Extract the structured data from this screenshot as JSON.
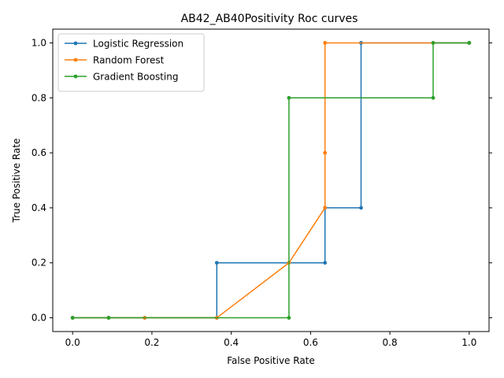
{
  "chart_data": {
    "type": "line",
    "title": "AB42_AB40Positivity Roc curves",
    "xlabel": "False Positive Rate",
    "ylabel": "True Positive Rate",
    "xlim": [
      -0.05,
      1.05
    ],
    "ylim": [
      -0.05,
      1.05
    ],
    "xticks": [
      0.0,
      0.2,
      0.4,
      0.6,
      0.8,
      1.0
    ],
    "yticks": [
      0.0,
      0.2,
      0.4,
      0.6,
      0.8,
      1.0
    ],
    "xtick_labels": [
      "0.0",
      "0.2",
      "0.4",
      "0.6",
      "0.8",
      "1.0"
    ],
    "ytick_labels": [
      "0.0",
      "0.2",
      "0.4",
      "0.6",
      "0.8",
      "1.0"
    ],
    "grid": false,
    "legend_position": "top-left",
    "series": [
      {
        "name": "Logistic Regression",
        "color": "#1f77b4",
        "x": [
          0.0,
          0.0909,
          0.1818,
          0.3636,
          0.3636,
          0.6364,
          0.6364,
          0.7273,
          0.7273,
          1.0
        ],
        "y": [
          0.0,
          0.0,
          0.0,
          0.0,
          0.2,
          0.2,
          0.4,
          0.4,
          1.0,
          1.0
        ]
      },
      {
        "name": "Random Forest",
        "color": "#ff7f0e",
        "x": [
          0.0,
          0.0909,
          0.1818,
          0.3636,
          0.5455,
          0.6364,
          0.6364,
          0.6364,
          0.9091,
          1.0
        ],
        "y": [
          0.0,
          0.0,
          0.0,
          0.0,
          0.2,
          0.4,
          0.6,
          1.0,
          1.0,
          1.0
        ]
      },
      {
        "name": "Gradient Boosting",
        "color": "#2ca02c",
        "x": [
          0.0,
          0.0909,
          0.5455,
          0.5455,
          0.9091,
          0.9091,
          1.0
        ],
        "y": [
          0.0,
          0.0,
          0.0,
          0.8,
          0.8,
          1.0,
          1.0
        ]
      }
    ]
  }
}
